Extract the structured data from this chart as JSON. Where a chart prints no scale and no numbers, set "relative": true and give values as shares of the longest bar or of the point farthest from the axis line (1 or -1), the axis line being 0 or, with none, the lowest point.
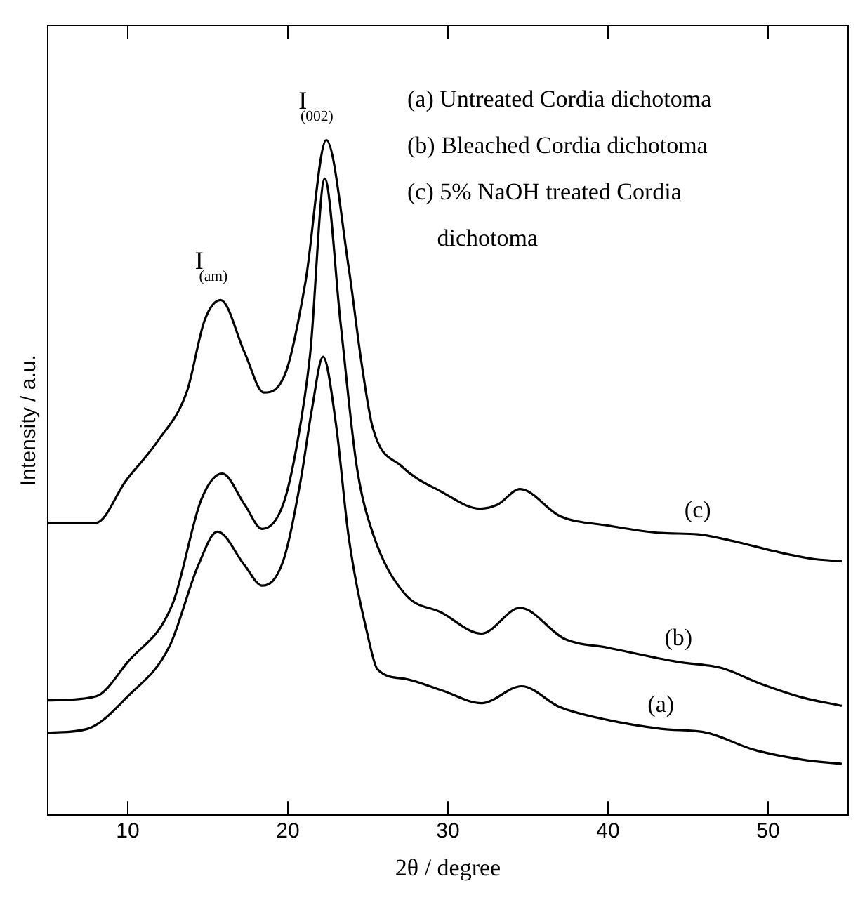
{
  "chart_data": {
    "type": "line",
    "relative": true,
    "xlabel": "2θ / degree",
    "ylabel": "Intensity / a.u.",
    "xlim": [
      5,
      55
    ],
    "xticks": [
      10,
      20,
      30,
      40,
      50
    ],
    "grid": false,
    "legend": false,
    "marker": "none",
    "line_style": "solid",
    "series": [
      {
        "name": "(a)",
        "color": "#000000",
        "x": [
          5,
          7.5,
          10,
          12.6,
          14.4,
          15.6,
          17.3,
          18.4,
          19.7,
          20.8,
          21.5,
          22.2,
          23.0,
          23.8,
          25.0,
          25.6,
          27.3,
          29.6,
          32.1,
          34.6,
          37.0,
          40,
          43.3,
          46.2,
          49.1,
          52.2,
          54.6
        ],
        "values": [
          0.122,
          0.128,
          0.176,
          0.25,
          0.37,
          0.42,
          0.37,
          0.34,
          0.376,
          0.496,
          0.601,
          0.679,
          0.58,
          0.412,
          0.265,
          0.216,
          0.202,
          0.185,
          0.166,
          0.191,
          0.16,
          0.141,
          0.128,
          0.122,
          0.097,
          0.082,
          0.076
        ]
      },
      {
        "name": "(b)",
        "color": "#000000",
        "x": [
          5,
          8,
          10,
          12.8,
          14.6,
          15.9,
          17.3,
          18.4,
          19.7,
          20.6,
          21.4,
          22.3,
          23.3,
          24.3,
          25.3,
          27.3,
          29.6,
          32.1,
          34.5,
          37.3,
          40,
          44.4,
          47.1,
          49.5,
          52.2,
          54.6
        ],
        "values": [
          0.17,
          0.176,
          0.227,
          0.313,
          0.468,
          0.506,
          0.46,
          0.424,
          0.46,
          0.553,
          0.685,
          0.943,
          0.727,
          0.517,
          0.418,
          0.328,
          0.3,
          0.269,
          0.307,
          0.261,
          0.248,
          0.227,
          0.218,
          0.195,
          0.174,
          0.162
        ]
      },
      {
        "name": "(c)",
        "color": "#000000",
        "x": [
          5,
          8,
          9.9,
          11.9,
          13.7,
          14.8,
          15.8,
          17.3,
          18.5,
          19.9,
          21.1,
          22.4,
          23.8,
          24.6,
          25.3,
          27.1,
          29.6,
          32.0,
          33.1,
          34.5,
          37.0,
          40.0,
          43.3,
          45.6,
          48.0,
          50.4,
          52.7,
          54.6
        ],
        "values": [
          0.433,
          0.433,
          0.496,
          0.555,
          0.628,
          0.733,
          0.763,
          0.685,
          0.626,
          0.658,
          0.79,
          1.0,
          0.811,
          0.67,
          0.574,
          0.517,
          0.479,
          0.454,
          0.46,
          0.483,
          0.443,
          0.429,
          0.418,
          0.416,
          0.405,
          0.391,
          0.38,
          0.376
        ]
      }
    ],
    "annotations": [
      {
        "text": "I$_{(am)}$",
        "x": 15.8,
        "y": 0.763
      },
      {
        "text": "I$_{(002)}$",
        "x": 22.4,
        "y": 1.0
      },
      "(a) Untreated Cordia dichotoma",
      "(b) Bleached Cordia dichotoma",
      "(c) 5% NaOH treated Cordia\n     dichotoma"
    ]
  }
}
